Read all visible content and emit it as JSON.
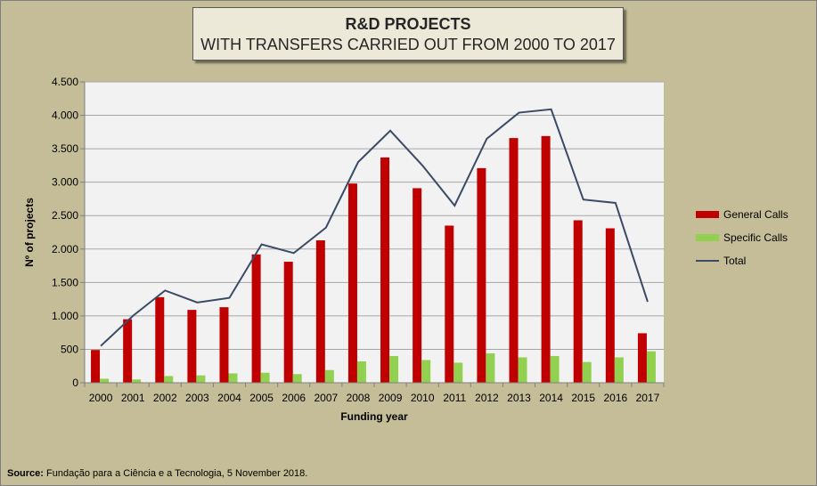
{
  "title": {
    "line1": "R&D PROJECTS",
    "line2": "WITH TRANSFERS CARRIED OUT FROM 2000 TO 2017"
  },
  "source": {
    "label": "Source:",
    "text": " Fundação para a Ciência e a Tecnologia, 5 November 2018."
  },
  "colors": {
    "background": "#c4bd97",
    "plot_area": "#f2f2f2",
    "general": "#c00000",
    "specific": "#92d050",
    "total": "#3b4a66",
    "grid": "#a6a6a6"
  },
  "chart_data": {
    "type": "bar",
    "title": "R&D PROJECTS WITH TRANSFERS CARRIED OUT FROM 2000 TO 2017",
    "xlabel": "Funding year",
    "ylabel": "Nº of projects",
    "ylim": [
      0,
      4500
    ],
    "yticks": [
      0,
      500,
      1000,
      1500,
      2000,
      2500,
      3000,
      3500,
      4000,
      4500
    ],
    "ytick_labels": [
      "0",
      "500",
      "1.000",
      "1.500",
      "2.000",
      "2.500",
      "3.000",
      "3.500",
      "4.000",
      "4.500"
    ],
    "grid": true,
    "legend_position": "right",
    "categories": [
      "2000",
      "2001",
      "2002",
      "2003",
      "2004",
      "2005",
      "2006",
      "2007",
      "2008",
      "2009",
      "2010",
      "2011",
      "2012",
      "2013",
      "2014",
      "2015",
      "2016",
      "2017"
    ],
    "series": [
      {
        "name": "General Calls",
        "type": "bar",
        "values": [
          490,
          950,
          1280,
          1090,
          1130,
          1920,
          1810,
          2130,
          2980,
          3370,
          2910,
          2350,
          3210,
          3660,
          3690,
          2430,
          2310,
          740
        ]
      },
      {
        "name": "Specific Calls",
        "type": "bar",
        "values": [
          60,
          50,
          100,
          110,
          140,
          150,
          130,
          190,
          320,
          400,
          340,
          300,
          440,
          380,
          400,
          310,
          380,
          470
        ]
      },
      {
        "name": "Total",
        "type": "line",
        "values": [
          550,
          1000,
          1380,
          1200,
          1270,
          2070,
          1940,
          2320,
          3300,
          3770,
          3250,
          2650,
          3650,
          4040,
          4090,
          2740,
          2690,
          1210
        ]
      }
    ]
  }
}
